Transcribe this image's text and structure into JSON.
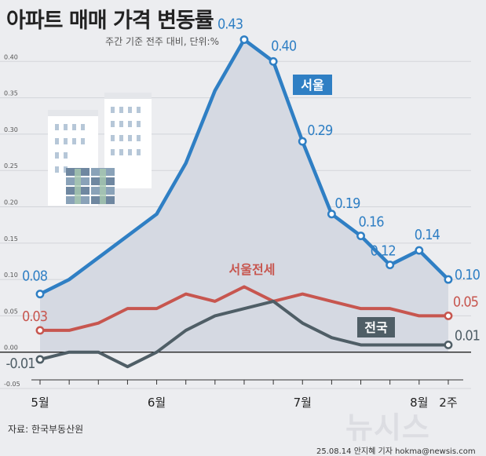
{
  "chart_data": {
    "type": "line",
    "title": "아파트 매매 가격 변동률",
    "subtitle": "주간 기준 전주 대비, 단위:%",
    "ylim": [
      -0.05,
      0.45
    ],
    "yticks": [
      "-0.05",
      "0.00",
      "0.05",
      "0.10",
      "0.15",
      "0.20",
      "0.25",
      "0.30",
      "0.35",
      "0.40"
    ],
    "x_tick_labels": [
      {
        "label": "5월",
        "index": 0
      },
      {
        "label": "6월",
        "index": 4
      },
      {
        "label": "7월",
        "index": 9
      },
      {
        "label": "8월",
        "index": 13
      },
      {
        "label": "2주",
        "index": 14
      }
    ],
    "series": [
      {
        "name": "서울",
        "color": "#2f7fc4",
        "values": [
          0.08,
          0.1,
          0.13,
          0.16,
          0.19,
          0.26,
          0.36,
          0.43,
          0.4,
          0.29,
          0.19,
          0.16,
          0.12,
          0.14,
          0.1
        ],
        "labels": [
          "0.08",
          "",
          "",
          "",
          "",
          "",
          "",
          "0.43",
          "0.40",
          "0.29",
          "0.19",
          "0.16",
          "0.12",
          "0.14",
          "0.10"
        ]
      },
      {
        "name": "서울전세",
        "color": "#c7564f",
        "values": [
          0.03,
          0.03,
          0.04,
          0.06,
          0.06,
          0.08,
          0.07,
          0.09,
          0.07,
          0.08,
          0.07,
          0.06,
          0.06,
          0.05,
          0.05
        ],
        "labels": [
          "0.03",
          "",
          "",
          "",
          "",
          "",
          "",
          "",
          "",
          "",
          "",
          "",
          "",
          "",
          "0.05"
        ]
      },
      {
        "name": "전국",
        "color": "#4f5e66",
        "values": [
          -0.01,
          0.0,
          0.0,
          -0.02,
          0.0,
          0.03,
          0.05,
          0.06,
          0.07,
          0.04,
          0.02,
          0.01,
          0.01,
          0.01,
          0.01
        ],
        "labels": [
          "-0.01",
          "",
          "",
          "",
          "",
          "",
          "",
          "",
          "",
          "",
          "",
          "",
          "",
          "",
          "0.01"
        ]
      }
    ]
  },
  "source": "자료: 한국부동산원",
  "credit": "25.08.14 안지혜 기자 hokma@newsis.com",
  "watermark": "뉴시스"
}
